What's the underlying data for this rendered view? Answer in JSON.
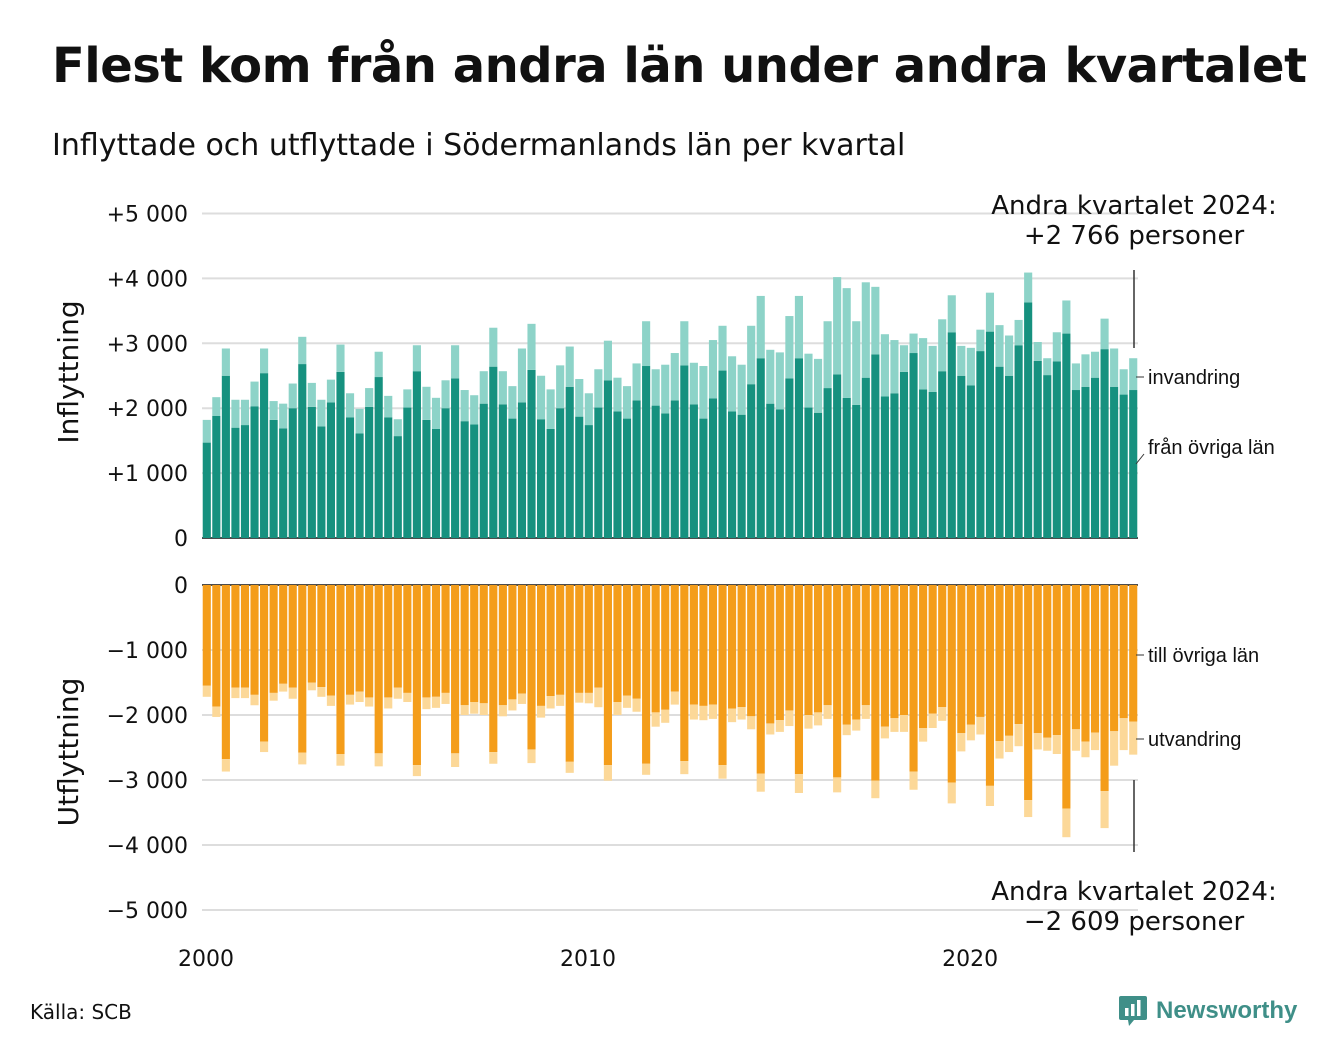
{
  "title": "Flest kom från andra län under andra kvartalet",
  "subtitle": "Inflyttade och utflyttade i Södermanlands län per kvartal",
  "source": "Källa: SCB",
  "brand": "Newsworthy",
  "colors": {
    "in_lan": "#16917f",
    "invandring": "#8dd3c8",
    "out_lan": "#f49d1a",
    "utvandring": "#fcd898",
    "grid": "#dddddd",
    "brand": "#3f8f88"
  },
  "annotation_top": {
    "line1": "Andra kvartalet 2024:",
    "line2": "+2 766 personer"
  },
  "annotation_bottom": {
    "line1": "Andra kvartalet 2024:",
    "line2": "−2 609 personer"
  },
  "chart_data": [
    {
      "type": "bar",
      "stacked": true,
      "x_start": "2000 Q1",
      "x_end": "2024 Q2",
      "x_ticks": [
        "2000",
        "2010",
        "2020"
      ],
      "ylabel": "Inflyttning",
      "ylim": [
        0,
        5000
      ],
      "y_ticks": [
        {
          "value": 0,
          "label": "0"
        },
        {
          "value": 1000,
          "label": "+1 000"
        },
        {
          "value": 2000,
          "label": "+2 000"
        },
        {
          "value": 3000,
          "label": "+3 000"
        },
        {
          "value": 4000,
          "label": "+4 000"
        },
        {
          "value": 5000,
          "label": "+5 000"
        }
      ],
      "grid": true,
      "series": [
        {
          "name": "från övriga län",
          "values": [
            1470,
            1880,
            2500,
            1700,
            1740,
            2030,
            2540,
            1820,
            1690,
            2000,
            2680,
            2020,
            1720,
            2090,
            2560,
            1860,
            1610,
            2020,
            2480,
            1860,
            1570,
            2010,
            2570,
            1820,
            1680,
            2000,
            2460,
            1800,
            1750,
            2070,
            2640,
            2060,
            1840,
            2090,
            2590,
            1830,
            1680,
            2000,
            2330,
            1870,
            1740,
            2010,
            2430,
            1950,
            1840,
            2120,
            2650,
            2040,
            1920,
            2120,
            2660,
            2060,
            1840,
            2150,
            2580,
            1950,
            1900,
            2370,
            2770,
            2070,
            1980,
            2460,
            2770,
            2010,
            1930,
            2310,
            2520,
            2160,
            2050,
            2470,
            2830,
            2180,
            2230,
            2560,
            2850,
            2290,
            2250,
            2570,
            3170,
            2500,
            2350,
            2880,
            3180,
            2640,
            2500,
            2970,
            3630,
            2730,
            2510,
            2720,
            3150,
            2280,
            2330,
            2470,
            2910,
            2330,
            2210,
            2280
          ]
        },
        {
          "name": "invandring",
          "values": [
            350,
            290,
            420,
            430,
            390,
            380,
            380,
            290,
            380,
            380,
            420,
            370,
            410,
            350,
            420,
            370,
            380,
            290,
            390,
            330,
            260,
            280,
            400,
            510,
            480,
            430,
            510,
            480,
            450,
            500,
            600,
            510,
            500,
            830,
            710,
            670,
            610,
            660,
            620,
            580,
            490,
            590,
            610,
            520,
            500,
            570,
            690,
            560,
            750,
            730,
            680,
            640,
            810,
            900,
            690,
            850,
            770,
            900,
            960,
            830,
            880,
            960,
            960,
            830,
            830,
            1030,
            1500,
            1690,
            1290,
            1470,
            1040,
            960,
            820,
            410,
            300,
            790,
            710,
            800,
            570,
            460,
            580,
            330,
            600,
            640,
            620,
            390,
            460,
            290,
            260,
            450,
            510,
            410,
            500,
            400,
            470,
            590,
            390,
            490
          ]
        }
      ]
    },
    {
      "type": "bar",
      "stacked": true,
      "x_start": "2000 Q1",
      "x_end": "2024 Q2",
      "x_ticks": [
        "2000",
        "2010",
        "2020"
      ],
      "ylabel": "Utflyttning",
      "ylim": [
        -5000,
        0
      ],
      "y_ticks": [
        {
          "value": 0,
          "label": "0"
        },
        {
          "value": -1000,
          "label": "−1 000"
        },
        {
          "value": -2000,
          "label": "−2 000"
        },
        {
          "value": -3000,
          "label": "−3 000"
        },
        {
          "value": -4000,
          "label": "−4 000"
        },
        {
          "value": -5000,
          "label": "−5 000"
        }
      ],
      "grid": true,
      "series": [
        {
          "name": "till övriga län",
          "values": [
            -1550,
            -1870,
            -2680,
            -1580,
            -1580,
            -1690,
            -2410,
            -1660,
            -1520,
            -1580,
            -2580,
            -1500,
            -1570,
            -1700,
            -2600,
            -1690,
            -1640,
            -1730,
            -2590,
            -1730,
            -1580,
            -1660,
            -2770,
            -1730,
            -1720,
            -1660,
            -2590,
            -1850,
            -1800,
            -1820,
            -2570,
            -1850,
            -1760,
            -1670,
            -2530,
            -1860,
            -1710,
            -1690,
            -2720,
            -1660,
            -1660,
            -1580,
            -2770,
            -1800,
            -1700,
            -1750,
            -2750,
            -1960,
            -1920,
            -1640,
            -2710,
            -1840,
            -1860,
            -1840,
            -2770,
            -1900,
            -1880,
            -2020,
            -2900,
            -2130,
            -2080,
            -1930,
            -2910,
            -2000,
            -1960,
            -1850,
            -2960,
            -2150,
            -2070,
            -1850,
            -3010,
            -2180,
            -2050,
            -2000,
            -2870,
            -2200,
            -1980,
            -1880,
            -3040,
            -2280,
            -2150,
            -2030,
            -3090,
            -2400,
            -2320,
            -2140,
            -3310,
            -2280,
            -2350,
            -2310,
            -3440,
            -2220,
            -2410,
            -2270,
            -3170,
            -2250,
            -2050,
            -2100
          ]
        },
        {
          "name": "utvandring",
          "values": [
            -170,
            -160,
            -190,
            -160,
            -160,
            -160,
            -160,
            -120,
            -120,
            -170,
            -180,
            -120,
            -150,
            -160,
            -180,
            -150,
            -160,
            -140,
            -200,
            -170,
            -170,
            -140,
            -170,
            -180,
            -170,
            -170,
            -210,
            -150,
            -180,
            -180,
            -180,
            -170,
            -170,
            -160,
            -210,
            -180,
            -190,
            -170,
            -170,
            -150,
            -160,
            -300,
            -240,
            -200,
            -190,
            -200,
            -170,
            -220,
            -200,
            -200,
            -200,
            -230,
            -220,
            -220,
            -210,
            -210,
            -190,
            -200,
            -280,
            -170,
            -180,
            -240,
            -290,
            -210,
            -200,
            -210,
            -230,
            -160,
            -170,
            -210,
            -270,
            -180,
            -210,
            -260,
            -280,
            -210,
            -220,
            -210,
            -320,
            -280,
            -240,
            -270,
            -310,
            -270,
            -250,
            -340,
            -260,
            -250,
            -200,
            -290,
            -440,
            -330,
            -240,
            -270,
            -570,
            -530,
            -490,
            -510
          ]
        }
      ]
    }
  ]
}
